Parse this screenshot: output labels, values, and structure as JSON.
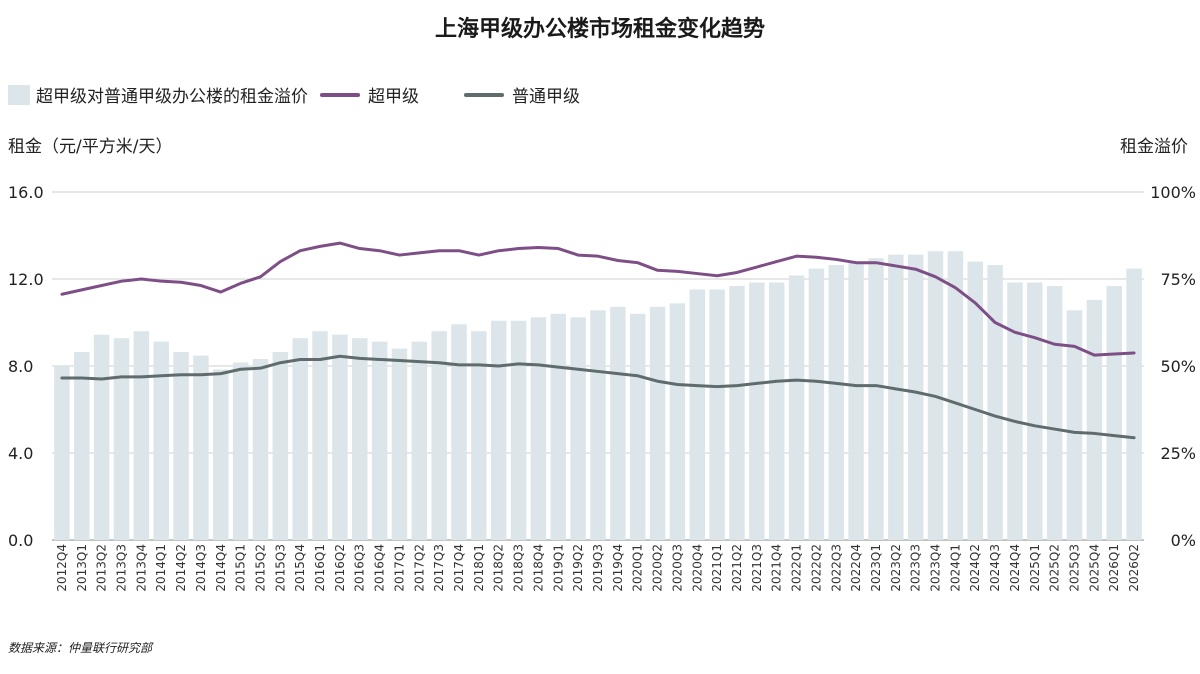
{
  "chart_data": {
    "type": "bar",
    "title": "上海甲级办公楼市场租金变化趋势",
    "y_left_label": "租金（元/平方米/天）",
    "y_right_label": "租金溢价",
    "y_left_ticks": [
      "0.0",
      "4.0",
      "8.0",
      "12.0",
      "16.0"
    ],
    "y_right_ticks": [
      "0%",
      "25%",
      "50%",
      "75%",
      "100%"
    ],
    "ylim_left": [
      0,
      16
    ],
    "ylim_right": [
      0,
      100
    ],
    "grid": true,
    "legend_position": "top-left",
    "source": "数据来源：仲量联行研究部",
    "categories": [
      "2012Q4",
      "2013Q1",
      "2013Q2",
      "2013Q3",
      "2013Q4",
      "2014Q1",
      "2014Q2",
      "2014Q3",
      "2014Q4",
      "2015Q1",
      "2015Q2",
      "2015Q3",
      "2015Q4",
      "2016Q1",
      "2016Q2",
      "2016Q3",
      "2016Q4",
      "2017Q1",
      "2017Q2",
      "2017Q3",
      "2017Q4",
      "2018Q1",
      "2018Q2",
      "2018Q3",
      "2018Q4",
      "2019Q1",
      "2019Q2",
      "2019Q3",
      "2019Q4",
      "2020Q1",
      "2020Q2",
      "2020Q3",
      "2020Q4",
      "2021Q1",
      "2021Q2",
      "2021Q3",
      "2021Q4",
      "2022Q1",
      "2022Q2",
      "2022Q3",
      "2022Q4",
      "2023Q1",
      "2023Q2",
      "2023Q3",
      "2023Q4",
      "2024Q1",
      "2024Q2",
      "2024Q3",
      "2024Q4",
      "2025Q1",
      "2025Q2",
      "2025Q3",
      "2025Q4",
      "2026Q1",
      "2026Q2"
    ],
    "series": [
      {
        "name": "超甲级对普通甲级办公楼的租金溢价",
        "type": "bar",
        "axis": "right",
        "color": "#dce6ea",
        "values": [
          50,
          54,
          59,
          58,
          60,
          57,
          54,
          53,
          49,
          51,
          52,
          54,
          58,
          60,
          59,
          58,
          57,
          55,
          57,
          60,
          62,
          60,
          63,
          63,
          64,
          65,
          64,
          66,
          67,
          65,
          67,
          68,
          72,
          72,
          73,
          74,
          74,
          76,
          78,
          79,
          80,
          81,
          82,
          82,
          83,
          83,
          80,
          79,
          74,
          74,
          73,
          66,
          69,
          73,
          78
        ]
      },
      {
        "name": "超甲级",
        "type": "line",
        "axis": "left",
        "color": "#7e4f86",
        "values": [
          11.3,
          11.5,
          11.7,
          11.9,
          12.0,
          11.9,
          11.85,
          11.7,
          11.4,
          11.8,
          12.1,
          12.8,
          13.3,
          13.5,
          13.65,
          13.4,
          13.3,
          13.1,
          13.2,
          13.3,
          13.3,
          13.1,
          13.3,
          13.4,
          13.45,
          13.4,
          13.1,
          13.05,
          12.85,
          12.75,
          12.4,
          12.35,
          12.25,
          12.15,
          12.3,
          12.55,
          12.8,
          13.05,
          13.0,
          12.9,
          12.75,
          12.75,
          12.6,
          12.45,
          12.1,
          11.6,
          10.9,
          10.0,
          9.55,
          9.3,
          9.0,
          8.9,
          8.5,
          8.55,
          8.6
        ],
        "note_values_shown_on_left_axis": true
      },
      {
        "name": "普通甲级",
        "type": "line",
        "axis": "left",
        "color": "#5f6b6d",
        "values": [
          7.45,
          7.45,
          7.4,
          7.5,
          7.5,
          7.55,
          7.6,
          7.6,
          7.65,
          7.85,
          7.9,
          8.15,
          8.3,
          8.3,
          8.45,
          8.35,
          8.3,
          8.25,
          8.2,
          8.15,
          8.05,
          8.05,
          8.0,
          8.1,
          8.05,
          7.95,
          7.85,
          7.75,
          7.65,
          7.55,
          7.3,
          7.15,
          7.1,
          7.05,
          7.1,
          7.2,
          7.3,
          7.35,
          7.3,
          7.2,
          7.1,
          7.1,
          6.95,
          6.8,
          6.6,
          6.3,
          6.0,
          5.7,
          5.45,
          5.25,
          5.1,
          4.95,
          4.9,
          4.8,
          4.7
        ]
      }
    ]
  }
}
